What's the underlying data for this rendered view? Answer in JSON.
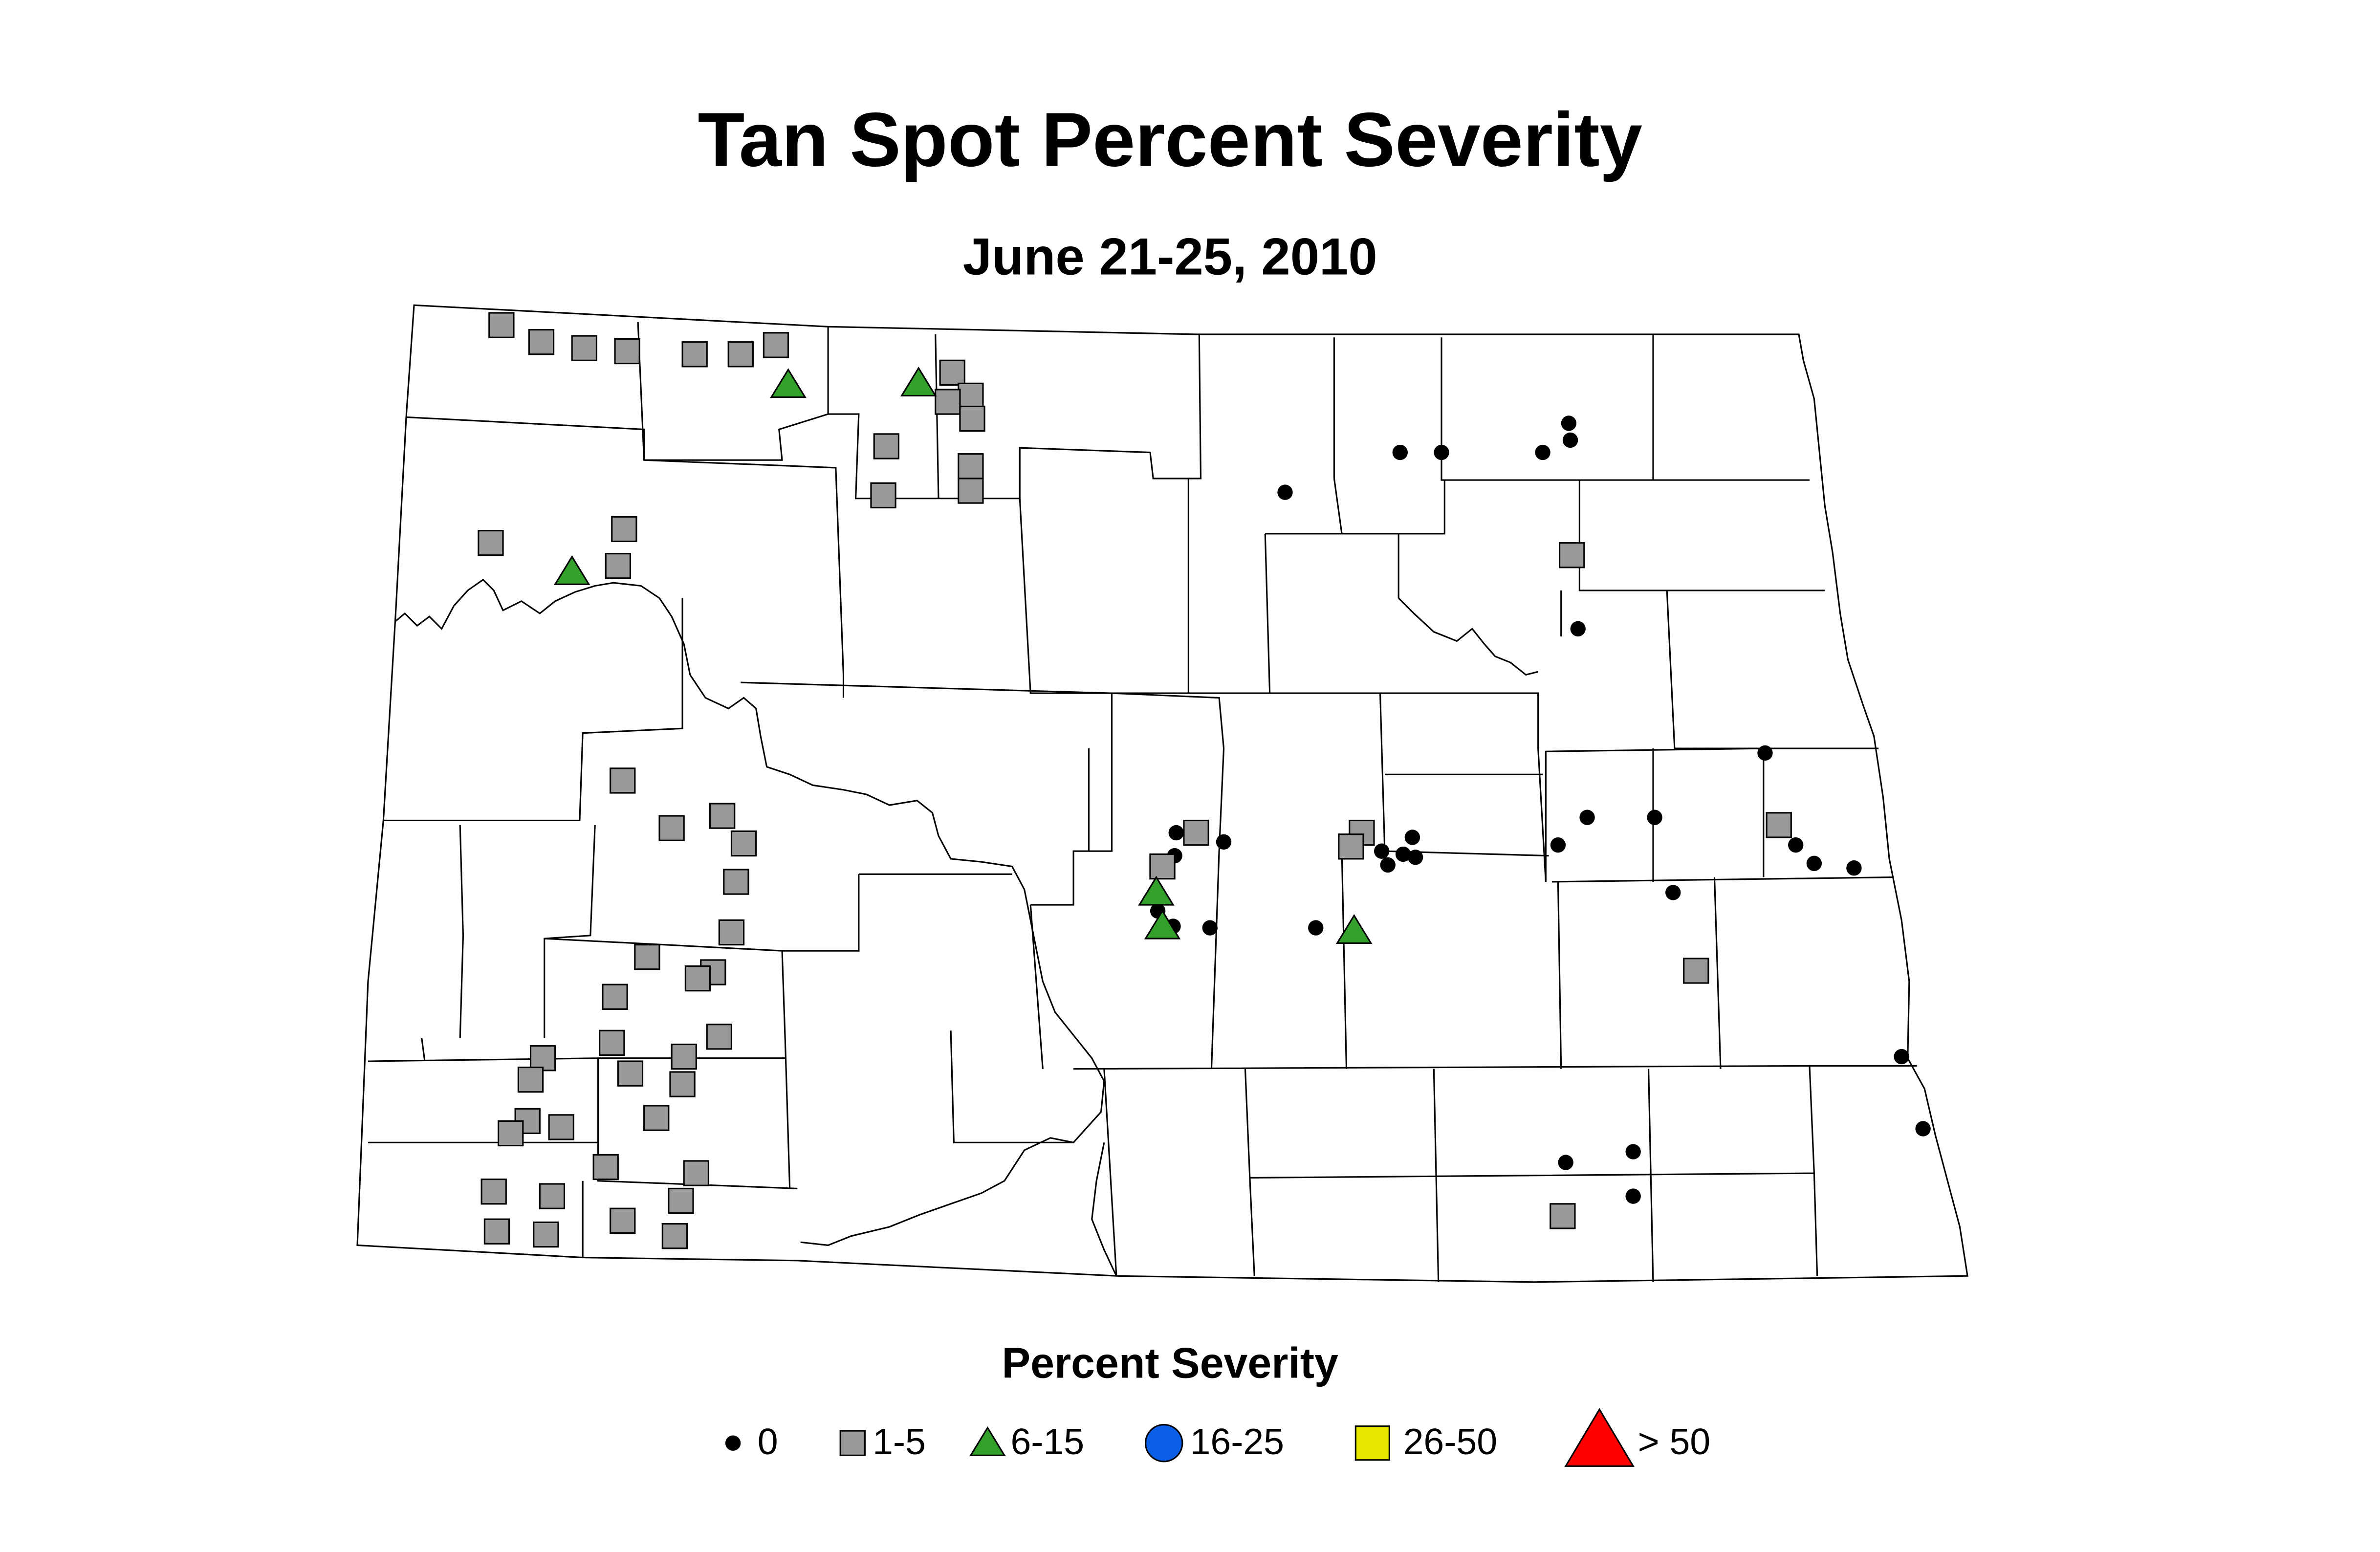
{
  "title": "Tan Spot Percent Severity",
  "subtitle": "June 21-25, 2010",
  "legend": {
    "title": "Percent Severity",
    "items": [
      {
        "label": "0",
        "shape": "dot",
        "color": "#000000"
      },
      {
        "label": "1-5",
        "shape": "square",
        "color": "#999999"
      },
      {
        "label": "6-15",
        "shape": "triangle",
        "color": "#33a02c"
      },
      {
        "label": "16-25",
        "shape": "circle",
        "color": "#0a5fe6"
      },
      {
        "label": "26-50",
        "shape": "square-large",
        "color": "#e6e600"
      },
      {
        "label": "> 50",
        "shape": "triangle-large",
        "color": "#ff0000"
      }
    ]
  }
}
